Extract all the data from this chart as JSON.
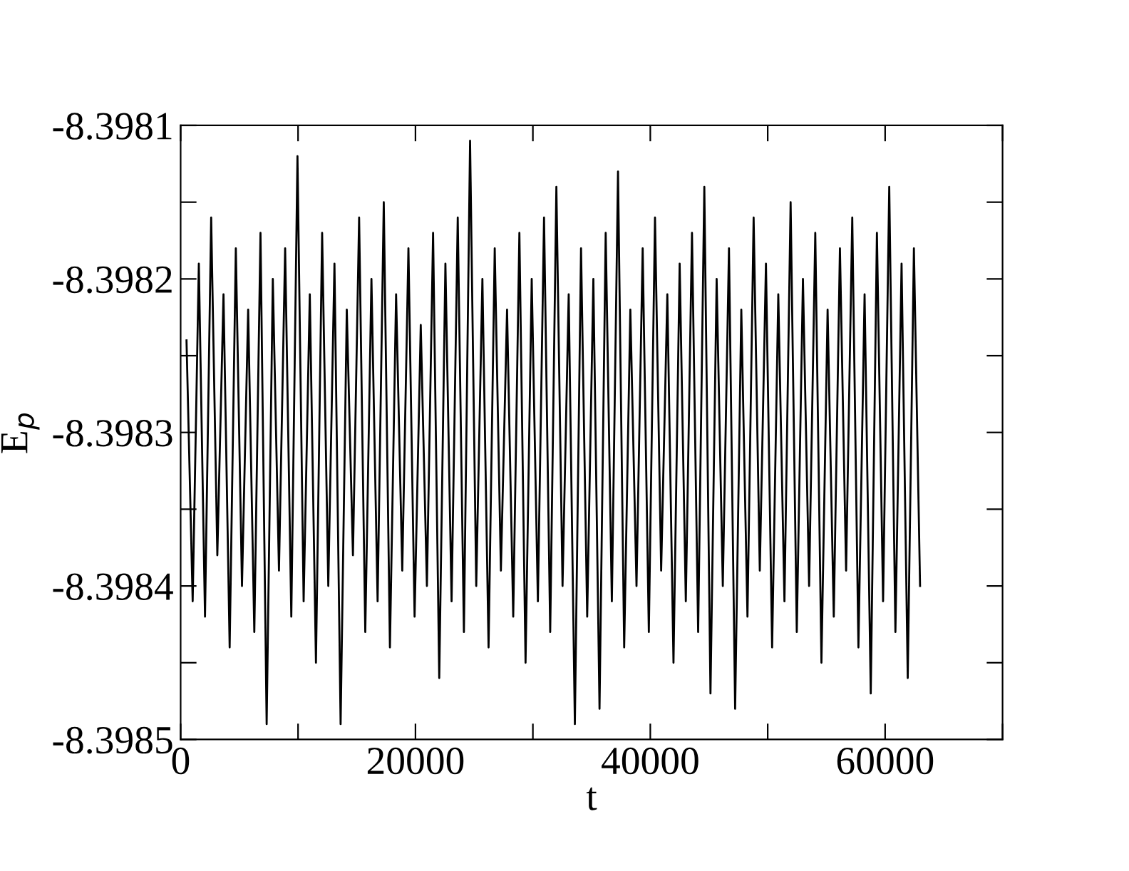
{
  "chart_data": {
    "type": "line",
    "xlabel": "t",
    "ylabel": "E$_{p}$",
    "x": [
      500,
      1025,
      1550,
      2075,
      2600,
      3125,
      3650,
      4175,
      4700,
      5225,
      5750,
      6275,
      6800,
      7325,
      7850,
      8375,
      8900,
      9425,
      9950,
      10475,
      11000,
      11525,
      12050,
      12575,
      13100,
      13625,
      14150,
      14675,
      15200,
      15725,
      16250,
      16775,
      17300,
      17825,
      18350,
      18875,
      19400,
      19925,
      20450,
      20975,
      21500,
      22025,
      22550,
      23075,
      23600,
      24125,
      24650,
      25175,
      25700,
      26225,
      26750,
      27275,
      27800,
      28325,
      28850,
      29375,
      29900,
      30425,
      30950,
      31475,
      32000,
      32525,
      33050,
      33575,
      34100,
      34625,
      35150,
      35675,
      36200,
      36725,
      37250,
      37775,
      38300,
      38825,
      39350,
      39875,
      40400,
      40925,
      41450,
      41975,
      42500,
      43025,
      43550,
      44075,
      44600,
      45125,
      45650,
      46175,
      46700,
      47225,
      47750,
      48275,
      48800,
      49325,
      49850,
      50375,
      50900,
      51425,
      51950,
      52475,
      53000,
      53525,
      54050,
      54575,
      55100,
      55625,
      56150,
      56675,
      57200,
      57725,
      58250,
      58775,
      59300,
      59825,
      60350,
      60875,
      61400,
      61925,
      62450,
      62975
    ],
    "series": [
      {
        "color": "#000000",
        "values": [
          -8.39824,
          -8.39841,
          -8.39819,
          -8.39842,
          -8.39816,
          -8.39838,
          -8.39821,
          -8.39844,
          -8.39818,
          -8.3984,
          -8.39822,
          -8.39843,
          -8.39817,
          -8.39849,
          -8.3982,
          -8.39839,
          -8.39818,
          -8.39842,
          -8.39812,
          -8.39841,
          -8.39821,
          -8.39845,
          -8.39817,
          -8.3984,
          -8.39819,
          -8.39849,
          -8.39822,
          -8.39838,
          -8.39816,
          -8.39843,
          -8.3982,
          -8.39841,
          -8.39815,
          -8.39844,
          -8.39821,
          -8.39839,
          -8.39818,
          -8.39842,
          -8.39823,
          -8.3984,
          -8.39817,
          -8.39846,
          -8.39819,
          -8.39841,
          -8.39816,
          -8.39843,
          -8.39811,
          -8.3984,
          -8.3982,
          -8.39844,
          -8.39818,
          -8.39839,
          -8.39822,
          -8.39842,
          -8.39817,
          -8.39845,
          -8.3982,
          -8.39841,
          -8.39816,
          -8.39843,
          -8.39814,
          -8.3984,
          -8.39821,
          -8.39849,
          -8.39818,
          -8.39842,
          -8.3982,
          -8.39848,
          -8.39817,
          -8.39841,
          -8.39813,
          -8.39844,
          -8.39822,
          -8.3984,
          -8.39818,
          -8.39843,
          -8.39816,
          -8.39839,
          -8.39821,
          -8.39845,
          -8.39819,
          -8.39841,
          -8.39817,
          -8.39843,
          -8.39814,
          -8.39847,
          -8.3982,
          -8.3984,
          -8.39818,
          -8.39848,
          -8.39822,
          -8.39842,
          -8.39816,
          -8.39839,
          -8.39819,
          -8.39844,
          -8.39821,
          -8.39841,
          -8.39815,
          -8.39843,
          -8.3982,
          -8.3984,
          -8.39817,
          -8.39845,
          -8.39822,
          -8.39842,
          -8.39818,
          -8.39839,
          -8.39816,
          -8.39844,
          -8.39821,
          -8.39847,
          -8.39817,
          -8.39841,
          -8.39814,
          -8.39843,
          -8.39819,
          -8.39846,
          -8.39818,
          -8.3984
        ]
      }
    ],
    "xlim": [
      0,
      70000
    ],
    "xticks": [
      0,
      {
        "value": 10000,
        "label": null
      },
      20000,
      {
        "value": 30000,
        "label": null
      },
      40000,
      {
        "value": 50000,
        "label": null
      },
      60000,
      {
        "value": 70000,
        "label": null
      }
    ],
    "ylim": [
      -8.3985,
      -8.3981
    ],
    "yticks": [
      -8.3985,
      {
        "value": -8.39845,
        "label": null
      },
      -8.3984,
      {
        "value": -8.39835,
        "label": null
      },
      -8.3983,
      {
        "value": -8.39825,
        "label": null
      },
      -8.3982,
      {
        "value": -8.39815,
        "label": null
      },
      -8.3981
    ],
    "grid": false,
    "legend": false,
    "marker": "none",
    "line_style": "solid"
  }
}
